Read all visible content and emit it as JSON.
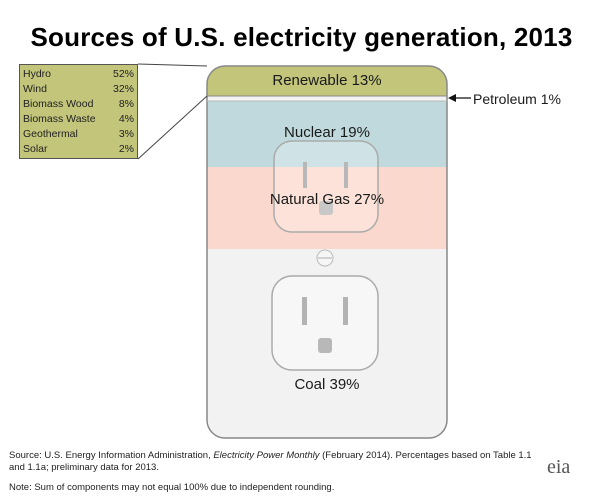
{
  "chart_data": {
    "type": "stacked-area",
    "title": "Sources of U.S. electricity generation, 2013",
    "categories": [
      "Renewable",
      "Petroleum",
      "Nuclear",
      "Natural Gas",
      "Coal"
    ],
    "values": [
      13,
      1,
      19,
      27,
      39
    ],
    "unit": "%",
    "labels": {
      "renewable": "Renewable 13%",
      "petroleum": "Petroleum 1%",
      "nuclear": "Nuclear 19%",
      "gas": "Natural Gas 27%",
      "coal": "Coal 39%"
    },
    "colors": {
      "renewable": "#c2c57a",
      "petroleum": "#f3f3f3",
      "nuclear": "#bfd9dc",
      "gas": "#fbd8cd",
      "coal": "#f2f2f2"
    },
    "renewable_breakdown": [
      {
        "name": "Hydro",
        "value": 52,
        "label": "52%"
      },
      {
        "name": "Wind",
        "value": 32,
        "label": "32%"
      },
      {
        "name": "Biomass Wood",
        "value": 8,
        "label": "8%"
      },
      {
        "name": "Biomass Waste",
        "value": 4,
        "label": "4%"
      },
      {
        "name": "Geothermal",
        "value": 3,
        "label": "3%"
      },
      {
        "name": "Solar",
        "value": 2,
        "label": "2%"
      }
    ]
  },
  "footer": {
    "source_prefix": "Source: U.S. Energy Information Administration, ",
    "source_italic": "Electricity Power Monthly",
    "source_suffix": " (February 2014). Percentages based on Table 1.1 and 1.1a; preliminary data for 2013.",
    "note": "Note: Sum of components may not equal 100% due to independent rounding.",
    "logo": "eia"
  }
}
